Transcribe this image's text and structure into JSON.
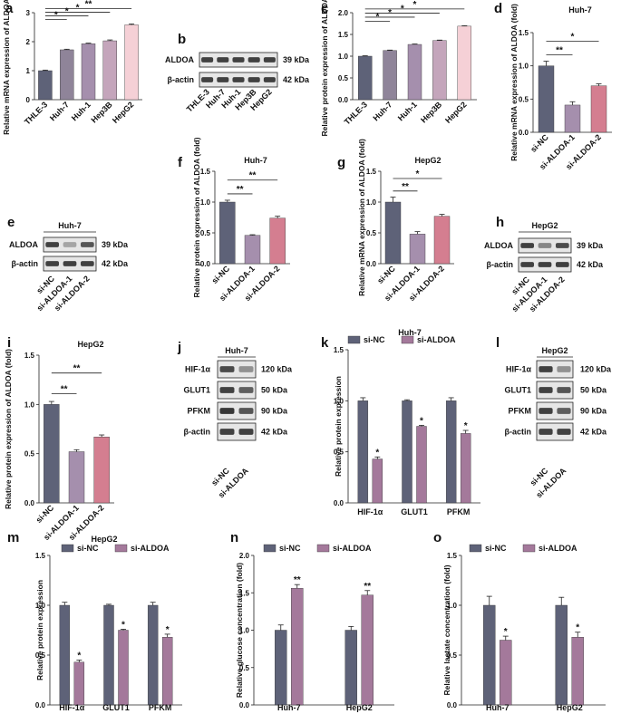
{
  "colors": {
    "gray": "#5e6278",
    "muted": "#8f8499",
    "mauve": "#a58fad",
    "pink": "#d47e90",
    "lightpink": "#f5d0d6",
    "lilac": "#c4a5bb",
    "purple": "#a4799b"
  },
  "panel_labels": {
    "a": "a",
    "b": "b",
    "c": "c",
    "d": "d",
    "e": "e",
    "f": "f",
    "g": "g",
    "h": "h",
    "i": "i",
    "j": "j",
    "k": "k",
    "l": "l",
    "m": "m",
    "n": "n",
    "o": "o"
  },
  "blots": {
    "b": {
      "lanes": [
        "THLE-3",
        "Huh-7",
        "Huh-1",
        "Hep3B",
        "HepG2"
      ],
      "rows": [
        {
          "label": "ALDOA",
          "kda": "39 kDa",
          "intensity": [
            0.85,
            0.85,
            0.85,
            0.85,
            0.85
          ]
        },
        {
          "label": "β-actin",
          "kda": "42 kDa",
          "intensity": [
            0.85,
            0.85,
            0.85,
            0.85,
            0.85
          ]
        }
      ]
    },
    "e": {
      "title": "Huh-7",
      "lanes": [
        "si-NC",
        "si-ALDOA-1",
        "si-ALDOA-2"
      ],
      "rows": [
        {
          "label": "ALDOA",
          "kda": "39 kDa",
          "intensity": [
            0.85,
            0.35,
            0.75
          ]
        },
        {
          "label": "β-actin",
          "kda": "42 kDa",
          "intensity": [
            0.85,
            0.85,
            0.85
          ]
        }
      ]
    },
    "h": {
      "title": "HepG2",
      "lanes": [
        "si-NC",
        "si-ALDOA-1",
        "si-ALDOA-2"
      ],
      "rows": [
        {
          "label": "ALDOA",
          "kda": "39 kDa",
          "intensity": [
            0.85,
            0.5,
            0.8
          ]
        },
        {
          "label": "β-actin",
          "kda": "42 kDa",
          "intensity": [
            0.85,
            0.85,
            0.85
          ]
        }
      ]
    },
    "j": {
      "title": "Huh-7",
      "lanes": [
        "si-NC",
        "si-ALDOA"
      ],
      "rows": [
        {
          "label": "HIF-1α",
          "kda": "120 kDa",
          "intensity": [
            0.8,
            0.45
          ]
        },
        {
          "label": "GLUT1",
          "kda": "50 kDa",
          "intensity": [
            0.85,
            0.7
          ]
        },
        {
          "label": "PFKM",
          "kda": "90 kDa",
          "intensity": [
            0.9,
            0.75
          ]
        },
        {
          "label": "β-actin",
          "kda": "42 kDa",
          "intensity": [
            0.85,
            0.85
          ]
        }
      ]
    },
    "l": {
      "title": "HepG2",
      "lanes": [
        "si-NC",
        "si-ALDOA"
      ],
      "rows": [
        {
          "label": "HIF-1α",
          "kda": "120 kDa",
          "intensity": [
            0.85,
            0.45
          ]
        },
        {
          "label": "GLUT1",
          "kda": "50 kDa",
          "intensity": [
            0.85,
            0.75
          ]
        },
        {
          "label": "PFKM",
          "kda": "90 kDa",
          "intensity": [
            0.85,
            0.7
          ]
        },
        {
          "label": "β-actin",
          "kda": "42 kDa",
          "intensity": [
            0.85,
            0.85
          ]
        }
      ]
    }
  },
  "chart_data": [
    {
      "id": "a",
      "type": "bar",
      "title": "",
      "ylabel": "Relative mRNA expression of ALDOA (fold)",
      "categories": [
        "THLE-3",
        "Huh-7",
        "Huh-1",
        "Hep3B",
        "HepG2"
      ],
      "values": [
        1.0,
        1.72,
        1.93,
        2.03,
        2.58
      ],
      "errors": [
        0.02,
        0.02,
        0.02,
        0.03,
        0.03
      ],
      "ylim": [
        0,
        3
      ],
      "yticks": [
        0,
        1,
        2,
        3
      ],
      "colors": [
        "gray",
        "muted",
        "mauve",
        "lilac",
        "lightpink"
      ],
      "significance": [
        {
          "from": 0,
          "to": 1,
          "label": "*"
        },
        {
          "from": 0,
          "to": 2,
          "label": "*"
        },
        {
          "from": 0,
          "to": 3,
          "label": "*"
        },
        {
          "from": 0,
          "to": 4,
          "label": "**"
        }
      ]
    },
    {
      "id": "c",
      "type": "bar",
      "title": "",
      "ylabel": "Relative protein expression of ALDOA (fold)",
      "categories": [
        "THLE-3",
        "Huh-7",
        "Huh-1",
        "Hep3B",
        "HepG2"
      ],
      "values": [
        1.0,
        1.13,
        1.27,
        1.36,
        1.69
      ],
      "errors": [
        0.01,
        0.01,
        0.01,
        0.01,
        0.01
      ],
      "ylim": [
        0,
        2
      ],
      "yticks": [
        0.0,
        0.5,
        1.0,
        1.5,
        2.0
      ],
      "colors": [
        "gray",
        "muted",
        "mauve",
        "lilac",
        "lightpink"
      ],
      "significance": [
        {
          "from": 0,
          "to": 1,
          "label": "*"
        },
        {
          "from": 0,
          "to": 2,
          "label": "*"
        },
        {
          "from": 0,
          "to": 3,
          "label": "*"
        },
        {
          "from": 0,
          "to": 4,
          "label": "*"
        }
      ]
    },
    {
      "id": "d",
      "type": "bar",
      "title": "Huh-7",
      "ylabel": "Relative mRNA expression of ALDOA (fold)",
      "categories": [
        "si-NC",
        "si-ALDOA-1",
        "si-ALDOA-2"
      ],
      "values": [
        1.0,
        0.41,
        0.7
      ],
      "errors": [
        0.07,
        0.05,
        0.03
      ],
      "ylim": [
        0,
        1.5
      ],
      "yticks": [
        0.0,
        0.5,
        1.0,
        1.5
      ],
      "colors": [
        "gray",
        "mauve",
        "pink"
      ],
      "significance": [
        {
          "from": 0,
          "to": 1,
          "label": "**"
        },
        {
          "from": 0,
          "to": 2,
          "label": "*"
        }
      ]
    },
    {
      "id": "f",
      "type": "bar",
      "title": "Huh-7",
      "ylabel": "Relative protein expression of ALDOA (fold)",
      "categories": [
        "si-NC",
        "si-ALDOA-1",
        "si-ALDOA-2"
      ],
      "values": [
        1.0,
        0.46,
        0.74
      ],
      "errors": [
        0.03,
        0.01,
        0.03
      ],
      "ylim": [
        0,
        1.5
      ],
      "yticks": [
        0.0,
        0.5,
        1.0,
        1.5
      ],
      "colors": [
        "gray",
        "mauve",
        "pink"
      ],
      "significance": [
        {
          "from": 0,
          "to": 1,
          "label": "**"
        },
        {
          "from": 0,
          "to": 2,
          "label": "**"
        }
      ]
    },
    {
      "id": "g",
      "type": "bar",
      "title": "HepG2",
      "ylabel": "Relative mRNA expression of ALDOA (fold)",
      "categories": [
        "si-NC",
        "si-ALDOA-1",
        "si-ALDOA-2"
      ],
      "values": [
        1.0,
        0.48,
        0.77
      ],
      "errors": [
        0.08,
        0.04,
        0.03
      ],
      "ylim": [
        0,
        1.5
      ],
      "yticks": [
        0.0,
        0.5,
        1.0,
        1.5
      ],
      "colors": [
        "gray",
        "mauve",
        "pink"
      ],
      "significance": [
        {
          "from": 0,
          "to": 1,
          "label": "**"
        },
        {
          "from": 0,
          "to": 2,
          "label": "*"
        }
      ]
    },
    {
      "id": "i",
      "type": "bar",
      "title": "HepG2",
      "ylabel": "Relative protein expression of ALDOA (fold)",
      "categories": [
        "si-NC",
        "si-ALDOA-1",
        "si-ALDOA-2"
      ],
      "values": [
        1.0,
        0.52,
        0.67
      ],
      "errors": [
        0.03,
        0.02,
        0.02
      ],
      "ylim": [
        0,
        1.5
      ],
      "yticks": [
        0.0,
        0.5,
        1.0,
        1.5
      ],
      "colors": [
        "gray",
        "mauve",
        "pink"
      ],
      "significance": [
        {
          "from": 0,
          "to": 1,
          "label": "**"
        },
        {
          "from": 0,
          "to": 2,
          "label": "**"
        }
      ]
    },
    {
      "id": "k",
      "type": "bar",
      "title": "Huh-7",
      "ylabel": "Relative protein expression",
      "categories": [
        "HIF-1α",
        "GLUT1",
        "PFKM"
      ],
      "series": [
        {
          "name": "si-NC",
          "color": "gray",
          "values": [
            1.0,
            1.0,
            1.0
          ],
          "errors": [
            0.03,
            0.01,
            0.03
          ]
        },
        {
          "name": "si-ALDOA",
          "color": "purple",
          "values": [
            0.43,
            0.75,
            0.68
          ],
          "errors": [
            0.02,
            0.01,
            0.03
          ]
        }
      ],
      "ylim": [
        0,
        1.5
      ],
      "yticks": [
        0.0,
        0.5,
        1.0,
        1.5
      ],
      "significance_labels": [
        "*",
        "*",
        "*"
      ]
    },
    {
      "id": "m",
      "type": "bar",
      "title": "HepG2",
      "ylabel": "Relative protein expression",
      "categories": [
        "HIF-1α",
        "GLUT1",
        "PFKM"
      ],
      "series": [
        {
          "name": "si-NC",
          "color": "gray",
          "values": [
            1.0,
            1.0,
            1.0
          ],
          "errors": [
            0.03,
            0.01,
            0.03
          ]
        },
        {
          "name": "si-ALDOA",
          "color": "purple",
          "values": [
            0.43,
            0.75,
            0.68
          ],
          "errors": [
            0.02,
            0.01,
            0.03
          ]
        }
      ],
      "ylim": [
        0,
        1.5
      ],
      "yticks": [
        0.0,
        0.5,
        1.0,
        1.5
      ],
      "significance_labels": [
        "*",
        "*",
        "*"
      ]
    },
    {
      "id": "n",
      "type": "bar",
      "title": "",
      "ylabel": "Relative glucose concentration (fold)",
      "categories": [
        "Huh-7",
        "HepG2"
      ],
      "series": [
        {
          "name": "si-NC",
          "color": "gray",
          "values": [
            1.0,
            1.0
          ],
          "errors": [
            0.07,
            0.05
          ]
        },
        {
          "name": "si-ALDOA",
          "color": "purple",
          "values": [
            1.56,
            1.47
          ],
          "errors": [
            0.05,
            0.06
          ]
        }
      ],
      "ylim": [
        0,
        2
      ],
      "yticks": [
        0.0,
        0.5,
        1.0,
        1.5,
        2.0
      ],
      "significance_labels": [
        "**",
        "**"
      ]
    },
    {
      "id": "o",
      "type": "bar",
      "title": "",
      "ylabel": "Relative lactate concentration (fold)",
      "categories": [
        "Huh-7",
        "HepG2"
      ],
      "series": [
        {
          "name": "si-NC",
          "color": "gray",
          "values": [
            1.0,
            1.0
          ],
          "errors": [
            0.09,
            0.08
          ]
        },
        {
          "name": "si-ALDOA",
          "color": "purple",
          "values": [
            0.65,
            0.68
          ],
          "errors": [
            0.04,
            0.05
          ]
        }
      ],
      "ylim": [
        0,
        1.5
      ],
      "yticks": [
        0.0,
        0.5,
        1.0,
        1.5
      ],
      "significance_labels": [
        "*",
        "*"
      ]
    }
  ]
}
